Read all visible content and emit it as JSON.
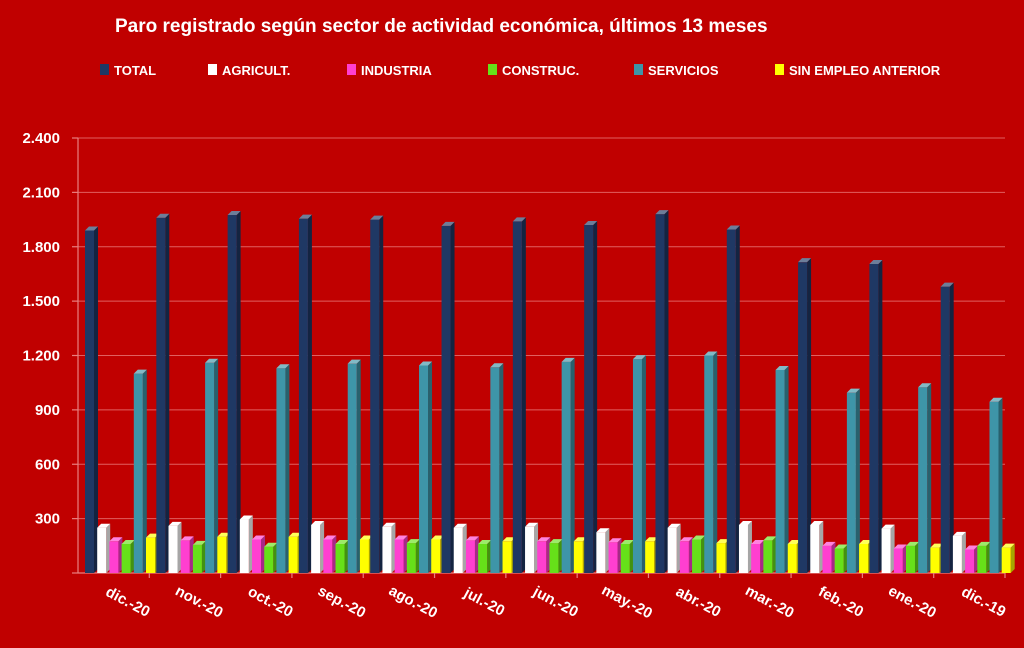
{
  "chart_data": {
    "type": "bar",
    "title": "Paro registrado según sector de actividad económica, últimos 13 meses",
    "categories": [
      "dic.-20",
      "nov.-20",
      "oct.-20",
      "sep.-20",
      "ago.-20",
      "jul.-20",
      "jun.-20",
      "may.-20",
      "abr.-20",
      "mar.-20",
      "feb.-20",
      "ene.-20",
      "dic.-19"
    ],
    "series": [
      {
        "name": "TOTAL",
        "color": "#1f3864",
        "values": [
          1890,
          1960,
          1975,
          1955,
          1950,
          1915,
          1940,
          1920,
          1980,
          1895,
          1715,
          1705,
          1580
        ]
      },
      {
        "name": "AGRICULT.",
        "color": "#ffffff",
        "values": [
          250,
          260,
          295,
          265,
          255,
          250,
          255,
          225,
          250,
          265,
          265,
          245,
          205
        ]
      },
      {
        "name": "INDUSTRIA",
        "color": "#ff3fd0",
        "values": [
          175,
          180,
          185,
          185,
          185,
          180,
          175,
          170,
          175,
          160,
          150,
          135,
          130
        ]
      },
      {
        "name": "CONSTRUC.",
        "color": "#66e019",
        "values": [
          160,
          155,
          145,
          160,
          165,
          160,
          165,
          160,
          185,
          180,
          135,
          150,
          150
        ]
      },
      {
        "name": "SERVICIOS",
        "color": "#3e95a8",
        "values": [
          1100,
          1160,
          1130,
          1155,
          1145,
          1135,
          1165,
          1180,
          1200,
          1120,
          995,
          1025,
          945
        ]
      },
      {
        "name": "SIN EMPLEO ANTERIOR",
        "color": "#ffff00",
        "values": [
          195,
          200,
          200,
          185,
          185,
          175,
          175,
          175,
          165,
          160,
          160,
          140,
          140
        ]
      }
    ],
    "yticks": [
      "2.400",
      "2.100",
      "1.800",
      "1.500",
      "1.200",
      "900",
      "600",
      "300",
      ""
    ],
    "ylim": [
      0,
      2400
    ],
    "grid": true,
    "legend_position": "top"
  }
}
